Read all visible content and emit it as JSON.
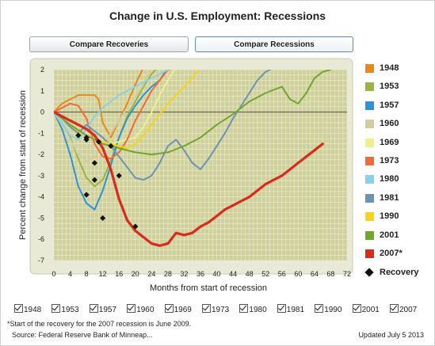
{
  "title": "Change in U.S. Employment: Recessions",
  "buttons": {
    "recoveries": "Compare Recoveries",
    "recessions": "Compare Recessions"
  },
  "legend": [
    {
      "label": "1948",
      "color": "#e8891b"
    },
    {
      "label": "1953",
      "color": "#9bb442"
    },
    {
      "label": "1957",
      "color": "#2f93d4"
    },
    {
      "label": "1960",
      "color": "#d2cc9e"
    },
    {
      "label": "1969",
      "color": "#f0f08a"
    },
    {
      "label": "1973",
      "color": "#ef6b39"
    },
    {
      "label": "1980",
      "color": "#8ad0e7"
    },
    {
      "label": "1981",
      "color": "#6d93b3"
    },
    {
      "label": "1990",
      "color": "#f7d31b"
    },
    {
      "label": "2001",
      "color": "#70a72a"
    },
    {
      "label": "2007*",
      "color": "#d92b1c"
    }
  ],
  "legend_recovery_label": "Recovery",
  "checkboxes": [
    "1948",
    "1953",
    "1957",
    "1960",
    "1969",
    "1973",
    "1980",
    "1981",
    "1990",
    "2001",
    "2007"
  ],
  "footnote": "*Start of the recovery for the 2007 recession is June 2009.",
  "source": "Source: Federal Reserve Bank of Minneap...",
  "updated": "Updated July 5 2013",
  "chart_data": {
    "type": "line",
    "title": "Change in U.S. Employment: Recessions",
    "xlabel": "Months from start of recession",
    "ylabel": "Percent change from start of recession",
    "xlim": [
      0,
      72
    ],
    "ylim": [
      -7,
      2
    ],
    "xticks": [
      0,
      4,
      8,
      12,
      16,
      20,
      24,
      28,
      32,
      36,
      40,
      44,
      48,
      52,
      56,
      60,
      64,
      68,
      72
    ],
    "yticks": [
      -7,
      -6,
      -5,
      -4,
      -3,
      -2,
      -1,
      0,
      1,
      2
    ],
    "grid": true,
    "plot_bg": "#cfd09a",
    "series": [
      {
        "name": "1948",
        "color": "#e8891b",
        "x": [
          0,
          2,
          4,
          6,
          8,
          10,
          11,
          12,
          14,
          16,
          18,
          20,
          22
        ],
        "y": [
          0,
          0.4,
          0.6,
          0.8,
          0.8,
          0.8,
          0.6,
          -0.5,
          -1.2,
          -0.4,
          0.4,
          1.3,
          2.1
        ]
      },
      {
        "name": "1953",
        "color": "#9bb442",
        "x": [
          0,
          2,
          4,
          6,
          8,
          10,
          12,
          14,
          16,
          18,
          20,
          22,
          24,
          26
        ],
        "y": [
          0,
          -0.5,
          -1.2,
          -2.2,
          -3.1,
          -3.5,
          -3.2,
          -2.3,
          -1.2,
          -0.2,
          0.5,
          1.2,
          1.8,
          2.2
        ]
      },
      {
        "name": "1957",
        "color": "#2f93d4",
        "x": [
          0,
          2,
          4,
          6,
          8,
          10,
          12,
          14,
          16,
          18,
          20,
          22,
          24,
          26,
          28
        ],
        "y": [
          0,
          -0.8,
          -2,
          -3.5,
          -4.3,
          -4.6,
          -3.7,
          -2.5,
          -1.2,
          -0.3,
          0.3,
          0.8,
          1.2,
          1.5,
          2.1
        ]
      },
      {
        "name": "1960",
        "color": "#d2cc9e",
        "x": [
          0,
          2,
          4,
          6,
          8,
          10,
          12,
          14,
          16,
          18,
          20,
          22,
          24
        ],
        "y": [
          0,
          -0.6,
          -1.3,
          -2,
          -2.3,
          -2.1,
          -1.6,
          -1,
          -0.4,
          0.2,
          0.7,
          1.3,
          2.1
        ]
      },
      {
        "name": "1969",
        "color": "#f0f08a",
        "x": [
          0,
          2,
          4,
          6,
          8,
          10,
          12,
          14,
          16,
          18,
          20,
          22,
          24,
          26,
          28,
          30
        ],
        "y": [
          0,
          -0.3,
          -0.6,
          -0.9,
          -1.1,
          -1.3,
          -1.4,
          -1.5,
          -1.4,
          -1.3,
          -1.2,
          -0.7,
          0,
          0.8,
          1.5,
          2.1
        ]
      },
      {
        "name": "1973",
        "color": "#ef6b39",
        "x": [
          0,
          2,
          4,
          6,
          8,
          10,
          12,
          14,
          16,
          18,
          20,
          22,
          24,
          26,
          28,
          30
        ],
        "y": [
          0,
          0.2,
          0.4,
          0.3,
          -0.3,
          -1.5,
          -2.1,
          -2.2,
          -1.9,
          -1.3,
          -0.4,
          0.3,
          1,
          1.5,
          2,
          2.1
        ]
      },
      {
        "name": "1980",
        "color": "#8ad0e7",
        "x": [
          0,
          2,
          4,
          6,
          8,
          10,
          12,
          14,
          16,
          18,
          20,
          22,
          24,
          26,
          28
        ],
        "y": [
          0,
          -0.5,
          -1.1,
          -1.3,
          -0.8,
          -0.2,
          0.2,
          0.5,
          0.8,
          1,
          1.2,
          1.4,
          1.6,
          1.8,
          2
        ]
      },
      {
        "name": "1981",
        "color": "#6d93b3",
        "x": [
          0,
          2,
          4,
          6,
          8,
          10,
          12,
          14,
          16,
          18,
          20,
          22,
          24,
          26,
          28,
          30,
          32,
          34,
          36,
          38,
          40,
          42,
          44,
          46,
          48,
          50,
          52,
          54
        ],
        "y": [
          0,
          -0.3,
          -0.7,
          -1,
          -0.6,
          -0.9,
          -1.2,
          -1.6,
          -2.1,
          -2.6,
          -3.1,
          -3.2,
          -3,
          -2.4,
          -1.6,
          -1.3,
          -1.8,
          -2.4,
          -2.7,
          -2.2,
          -1.6,
          -1,
          -0.3,
          0.3,
          0.9,
          1.5,
          1.9,
          2.1
        ]
      },
      {
        "name": "1990",
        "color": "#f7d31b",
        "x": [
          0,
          2,
          4,
          6,
          8,
          10,
          12,
          14,
          16,
          18,
          20,
          22,
          24,
          26,
          28,
          30,
          32,
          34,
          36
        ],
        "y": [
          0,
          -0.3,
          -0.6,
          -0.9,
          -1.1,
          -1.3,
          -1.4,
          -1.5,
          -1.6,
          -1.7,
          -1.5,
          -1.1,
          -0.6,
          -0.1,
          0.4,
          0.8,
          1.2,
          1.6,
          2.1
        ]
      },
      {
        "name": "2001",
        "color": "#70a72a",
        "x": [
          0,
          4,
          8,
          12,
          16,
          20,
          24,
          28,
          32,
          36,
          40,
          44,
          48,
          52,
          56,
          58,
          60,
          62,
          64,
          66,
          68
        ],
        "y": [
          0,
          -0.6,
          -1.1,
          -1.5,
          -1.7,
          -1.9,
          -2,
          -1.9,
          -1.6,
          -1.2,
          -0.6,
          -0.1,
          0.5,
          0.9,
          1.2,
          0.6,
          0.4,
          0.9,
          1.6,
          1.9,
          2
        ]
      },
      {
        "name": "2007*",
        "color": "#d92b1c",
        "x": [
          0,
          2,
          4,
          6,
          8,
          10,
          12,
          14,
          16,
          18,
          20,
          22,
          24,
          26,
          28,
          30,
          32,
          34,
          36,
          38,
          40,
          42,
          44,
          46,
          48,
          50,
          52,
          54,
          56,
          58,
          60,
          62,
          64,
          66
        ],
        "y": [
          0,
          -0.2,
          -0.4,
          -0.6,
          -0.8,
          -1.1,
          -1.7,
          -2.7,
          -4.1,
          -5.1,
          -5.6,
          -5.9,
          -6.2,
          -6.3,
          -6.2,
          -5.7,
          -5.8,
          -5.7,
          -5.4,
          -5.2,
          -4.9,
          -4.6,
          -4.4,
          -4.2,
          -4,
          -3.7,
          -3.4,
          -3.2,
          -3,
          -2.7,
          -2.4,
          -2.1,
          -1.8,
          -1.5
        ]
      }
    ],
    "recovery_points": [
      {
        "x": 6,
        "y": -1.1
      },
      {
        "x": 8,
        "y": -1.3
      },
      {
        "x": 8,
        "y": -3.9
      },
      {
        "x": 10,
        "y": -2.4
      },
      {
        "x": 10,
        "y": -3.2
      },
      {
        "x": 11,
        "y": -1.4
      },
      {
        "x": 12,
        "y": -5.0
      },
      {
        "x": 14,
        "y": -1.6
      },
      {
        "x": 16,
        "y": -3.0
      },
      {
        "x": 20,
        "y": -5.4
      },
      {
        "x": 8,
        "y": -1.2
      }
    ]
  }
}
